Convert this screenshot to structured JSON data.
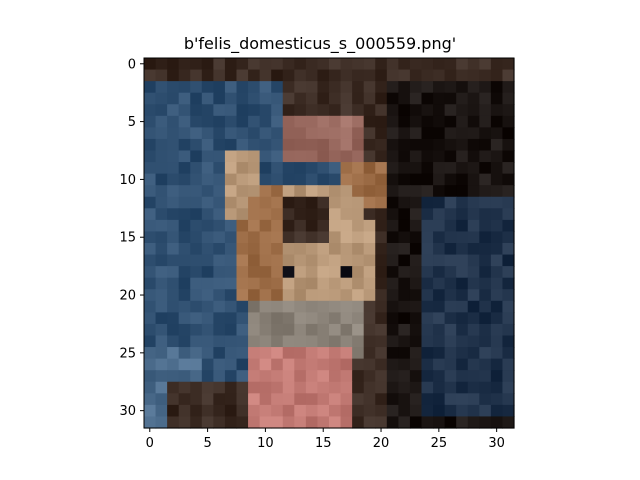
{
  "figure": {
    "title": "b'felis_domesticus_s_000559.png'"
  },
  "image_grid": {
    "rows": 32,
    "cols": 32
  },
  "axes": {
    "x_ticks": [
      0,
      5,
      10,
      15,
      20,
      25,
      30
    ],
    "y_ticks": [
      0,
      5,
      10,
      15,
      20,
      25,
      30
    ],
    "x_range": [
      -0.5,
      31.5
    ],
    "y_range": [
      -0.5,
      31.5
    ],
    "y_inverted": true
  },
  "palette": {
    "denim_dark": "#1f3149",
    "denim": "#2f4f70",
    "denim_light": "#4a6a8a",
    "shadow": "#1a1412",
    "brown_dark": "#3a2a22",
    "fur_orange": "#9a6a44",
    "fur_light": "#b89878",
    "fur_gray": "#8a8278",
    "pink": "#c27a74",
    "skin": "#9a6a60",
    "eye": "#1a1a22"
  }
}
